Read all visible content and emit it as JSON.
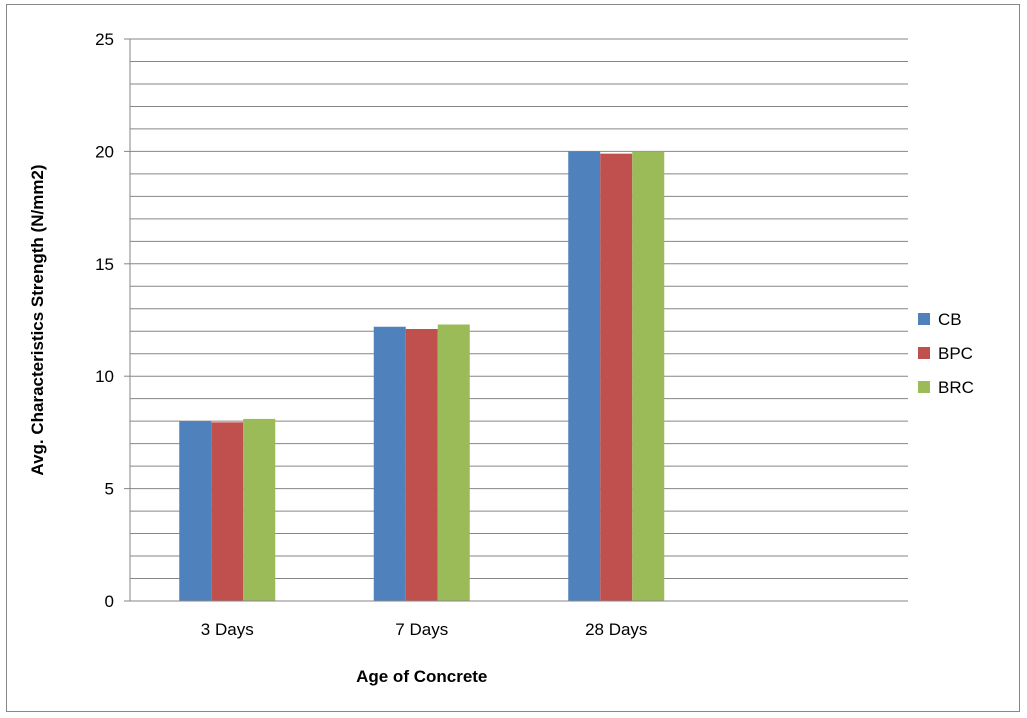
{
  "chart_data": {
    "type": "bar",
    "categories": [
      "3 Days",
      "7 Days",
      "28 Days"
    ],
    "n_slots": 4,
    "series": [
      {
        "name": "CB",
        "color": "#4f81bd",
        "values": [
          8.0,
          12.2,
          20.0
        ]
      },
      {
        "name": "BPC",
        "color": "#c0504d",
        "values": [
          7.95,
          12.1,
          19.9
        ]
      },
      {
        "name": "BRC",
        "color": "#9bbb59",
        "values": [
          8.1,
          12.3,
          20.0
        ]
      }
    ],
    "xlabel": "Age of Concrete",
    "ylabel": "Avg. Characteristics Strength (N/mm2)",
    "ylim": [
      0,
      25
    ],
    "major_ticks": [
      0,
      5,
      10,
      15,
      20,
      25
    ],
    "minor_step": 1,
    "grid": true,
    "legend_position": "right"
  }
}
